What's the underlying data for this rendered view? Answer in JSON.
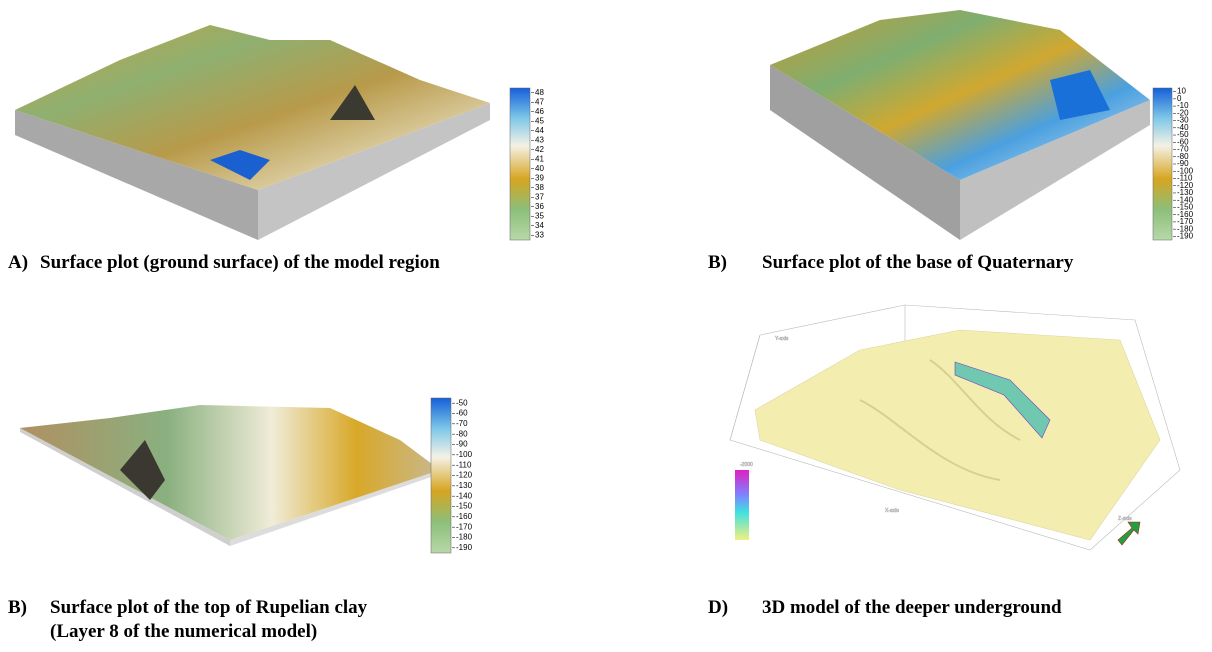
{
  "panels": [
    {
      "label": "A)",
      "caption": "Surface plot (ground surface) of the model region",
      "colorbar": [
        48,
        47,
        46,
        45,
        44,
        43,
        42,
        41,
        40,
        39,
        38,
        37,
        36,
        35,
        34,
        33
      ]
    },
    {
      "label": "B)",
      "caption": "Surface plot of the base of Quaternary",
      "colorbar": [
        10,
        0,
        -10,
        -20,
        -30,
        -40,
        -50,
        -60,
        -70,
        -80,
        -90,
        -100,
        -110,
        -120,
        -130,
        -140,
        -150,
        -160,
        -170,
        -180,
        -190
      ]
    },
    {
      "label": "B)",
      "caption": "Surface plot of the top of Rupelian clay",
      "caption_line2": "(Layer 8 of the numerical model)",
      "colorbar": [
        -50,
        -60,
        -70,
        -80,
        -90,
        -100,
        -110,
        -120,
        -130,
        -140,
        -150,
        -160,
        -170,
        -180,
        -190
      ]
    },
    {
      "label": "D)",
      "caption": "3D model of the deeper underground",
      "axis_labels": [
        "X-axis",
        "Y-axis",
        "Z-axis"
      ],
      "colorbar_label": "-2000"
    }
  ]
}
